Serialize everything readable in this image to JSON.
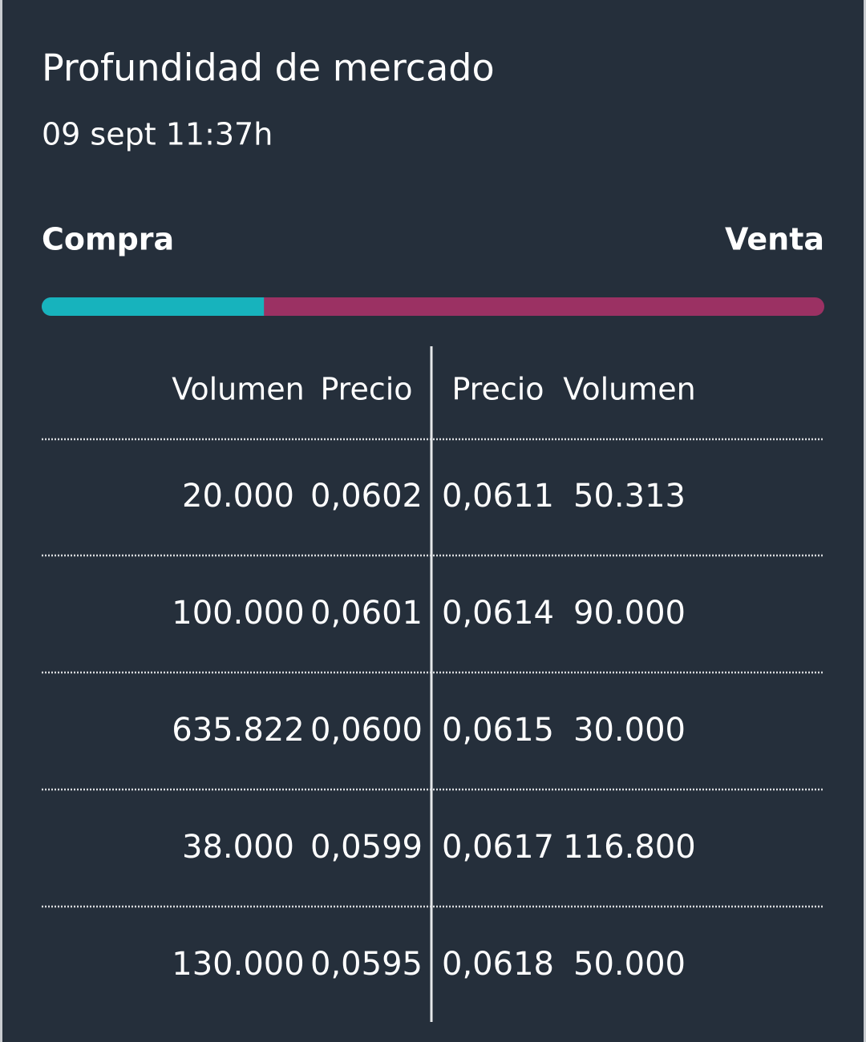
{
  "header": {
    "title": "Profundidad de mercado",
    "timestamp": "09 sept 11:37h"
  },
  "depth_bar": {
    "buy_label": "Compra",
    "sell_label": "Venta",
    "buy_share": 28.4,
    "buy_color": "#17b3bd",
    "sell_color": "#9b3163"
  },
  "table": {
    "columns": [
      "Volumen",
      "Precio",
      "Precio",
      "Volumen"
    ],
    "rows": [
      [
        "20.000",
        "0,0602",
        "0,0611",
        "50.313"
      ],
      [
        "100.000",
        "0,0601",
        "0,0614",
        "90.000"
      ],
      [
        "635.822",
        "0,0600",
        "0,0615",
        "30.000"
      ],
      [
        "38.000",
        "0,0599",
        "0,0617",
        "116.800"
      ],
      [
        "130.000",
        "0,0595",
        "0,0618",
        "50.000"
      ]
    ]
  }
}
